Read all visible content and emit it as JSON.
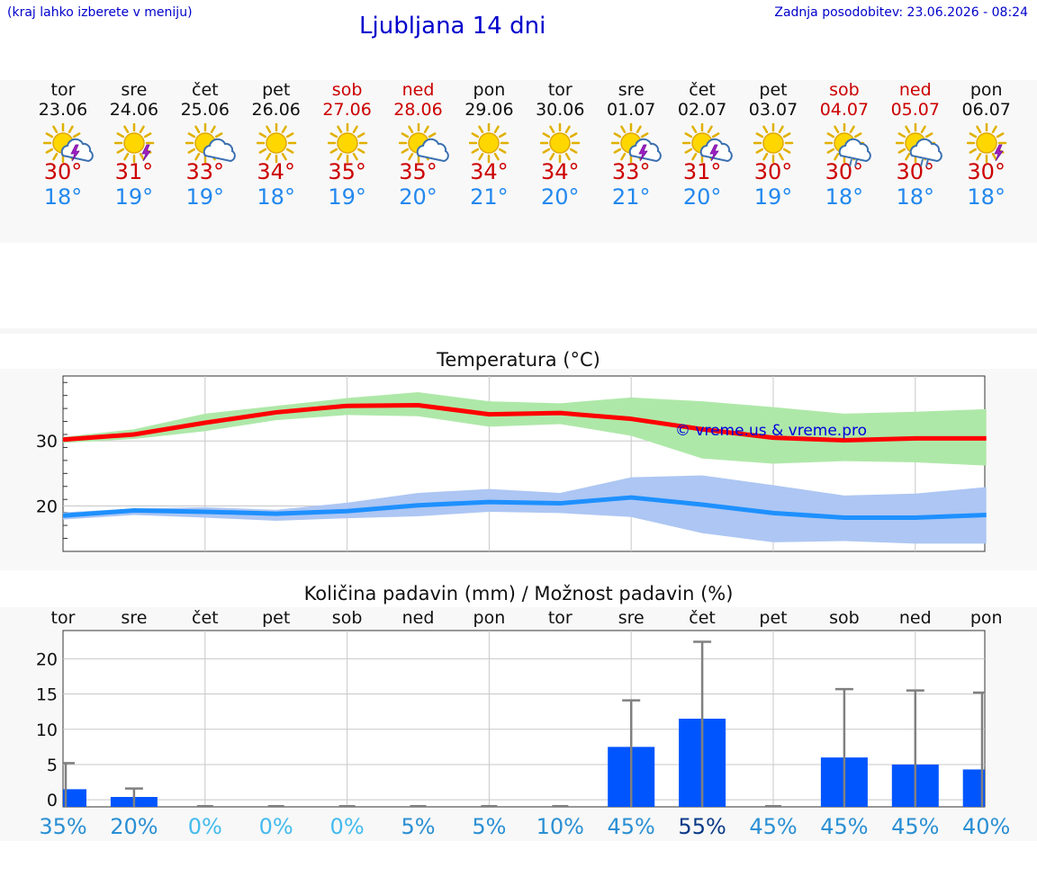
{
  "header": {
    "note": "(kraj lahko izberete v meniju)",
    "title": "Ljubljana 14 dni",
    "updated": "Zadnja posodobitev: 23.06.2026 - 08:24"
  },
  "days": [
    {
      "name": "tor",
      "date": "23.06",
      "max": "30°",
      "min": "18°",
      "weekend": false,
      "icon": "sun-cloud-thunder-icon"
    },
    {
      "name": "sre",
      "date": "24.06",
      "max": "31°",
      "min": "19°",
      "weekend": false,
      "icon": "sun-thunder-icon"
    },
    {
      "name": "čet",
      "date": "25.06",
      "max": "33°",
      "min": "19°",
      "weekend": false,
      "icon": "sun-cloud-icon"
    },
    {
      "name": "pet",
      "date": "26.06",
      "max": "34°",
      "min": "18°",
      "weekend": false,
      "icon": "sun-icon"
    },
    {
      "name": "sob",
      "date": "27.06",
      "max": "35°",
      "min": "19°",
      "weekend": true,
      "icon": "sun-icon"
    },
    {
      "name": "ned",
      "date": "28.06",
      "max": "35°",
      "min": "20°",
      "weekend": true,
      "icon": "sun-cloud-icon"
    },
    {
      "name": "pon",
      "date": "29.06",
      "max": "34°",
      "min": "21°",
      "weekend": false,
      "icon": "sun-icon"
    },
    {
      "name": "tor",
      "date": "30.06",
      "max": "34°",
      "min": "20°",
      "weekend": false,
      "icon": "sun-icon"
    },
    {
      "name": "sre",
      "date": "01.07",
      "max": "33°",
      "min": "21°",
      "weekend": false,
      "icon": "sun-cloud-thunder-icon"
    },
    {
      "name": "čet",
      "date": "02.07",
      "max": "31°",
      "min": "20°",
      "weekend": false,
      "icon": "sun-cloud-thunder-icon"
    },
    {
      "name": "pet",
      "date": "03.07",
      "max": "30°",
      "min": "19°",
      "weekend": false,
      "icon": "sun-icon"
    },
    {
      "name": "sob",
      "date": "04.07",
      "max": "30°",
      "min": "18°",
      "weekend": true,
      "icon": "sun-cloud-rain-icon"
    },
    {
      "name": "ned",
      "date": "05.07",
      "max": "30°",
      "min": "18°",
      "weekend": true,
      "icon": "sun-cloud-rain-icon"
    },
    {
      "name": "pon",
      "date": "06.07",
      "max": "30°",
      "min": "18°",
      "weekend": false,
      "icon": "sun-thunder-icon"
    }
  ],
  "colors": {
    "max": "#cc0000",
    "min": "#2288ee",
    "max_band": "#aee8a8",
    "min_band": "#adc6f3",
    "max_line": "#ff0000",
    "min_line": "#1e90ff",
    "bar": "#0055ff",
    "whisker": "#808080"
  },
  "chart_data": [
    {
      "type": "line",
      "title": "Temperatura (°C)",
      "watermark": "© vreme.us & vreme.pro",
      "x": [
        "23.06",
        "24.06",
        "25.06",
        "26.06",
        "27.06",
        "28.06",
        "29.06",
        "30.06",
        "01.07",
        "02.07",
        "03.07",
        "04.07",
        "05.07",
        "06.07"
      ],
      "ylim": [
        13,
        40
      ],
      "yticks": [
        20,
        30
      ],
      "series": [
        {
          "values": [
            30.2,
            31,
            32.8,
            34.4,
            35.4,
            35.5,
            34.1,
            34.3,
            33.4,
            31.8,
            30.5,
            30.1,
            30.4,
            30.4
          ],
          "lower": [
            29.7,
            30.3,
            31.5,
            33.2,
            34,
            33.8,
            32.2,
            32.6,
            30.8,
            27.3,
            26.5,
            26.9,
            26.7,
            26.2
          ],
          "upper": [
            30.6,
            31.8,
            34.2,
            35.4,
            36.6,
            37.5,
            36.1,
            35.8,
            36.7,
            36.1,
            35.2,
            34.2,
            34.5,
            34.9
          ]
        },
        {
          "values": [
            18.5,
            19.3,
            19.1,
            18.8,
            19.2,
            20.1,
            20.6,
            20.4,
            21.3,
            20.2,
            18.9,
            18.2,
            18.2,
            18.6
          ],
          "lower": [
            17.9,
            18.6,
            18.2,
            17.7,
            18.1,
            18.4,
            19.1,
            18.9,
            18.3,
            15.8,
            14.4,
            14.6,
            14.2,
            14.2
          ],
          "upper": [
            19,
            19.6,
            19.8,
            19.4,
            20.5,
            22,
            22.6,
            22,
            24.4,
            24.7,
            23.2,
            21.6,
            21.9,
            22.9
          ]
        }
      ]
    },
    {
      "type": "bar",
      "title": "Količina padavin (mm) / Možnost padavin (%)",
      "categories": [
        "tor",
        "sre",
        "čet",
        "pet",
        "sob",
        "ned",
        "pon",
        "tor",
        "sre",
        "čet",
        "pet",
        "sob",
        "ned",
        "pon"
      ],
      "values": [
        1.5,
        0.4,
        0,
        0,
        0,
        0,
        0,
        0,
        7.5,
        11.5,
        0,
        6,
        5,
        4.3
      ],
      "error_high": [
        5.2,
        1.6,
        0,
        0,
        0,
        0,
        0,
        0,
        14.1,
        22.4,
        0,
        15.7,
        15.5,
        15.2
      ],
      "chance": [
        "35%",
        "20%",
        "0%",
        "0%",
        "0%",
        "5%",
        "5%",
        "10%",
        "45%",
        "55%",
        "45%",
        "45%",
        "45%",
        "40%"
      ],
      "ylim": [
        -1,
        24
      ],
      "yticks": [
        0,
        5,
        10,
        15,
        20
      ]
    }
  ]
}
